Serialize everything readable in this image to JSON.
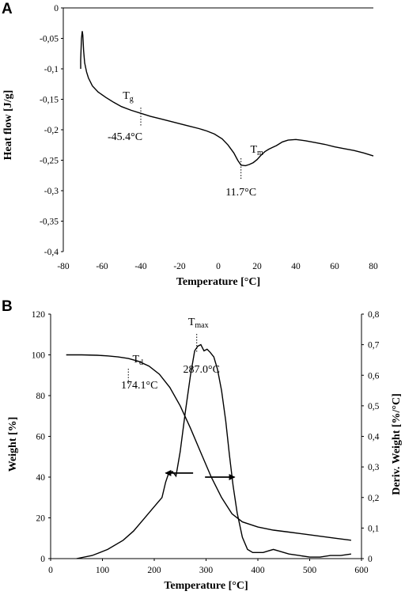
{
  "chart_data": [
    {
      "panel": "A",
      "type": "line",
      "xlabel": "Temperature [°C]",
      "ylabel": "Heat flow [J/g]",
      "xlim": [
        -80,
        80
      ],
      "ylim": [
        -0.4,
        0
      ],
      "x_ticks": [
        "-80",
        "-60",
        "-40",
        "-20",
        "0",
        "20",
        "40",
        "60",
        "80"
      ],
      "y_ticks": [
        "0",
        "-0,05",
        "-0,1",
        "-0,15",
        "-0,2",
        "-0,25",
        "-0,3",
        "-0,35",
        "-0,4"
      ],
      "series": [
        {
          "x": [
            -71,
            -71,
            -70.6,
            -70.2,
            -69.9,
            -69.5,
            -69,
            -68,
            -67,
            -65,
            -62,
            -58,
            -54,
            -50,
            -45,
            -40,
            -35,
            -30,
            -25,
            -20,
            -15,
            -10,
            -6,
            -2,
            2,
            5,
            8,
            10,
            11.7,
            14,
            16,
            18,
            20,
            22,
            24,
            26,
            28,
            30,
            33,
            36,
            40,
            45,
            50,
            55,
            60,
            65,
            70,
            75,
            80
          ],
          "y": [
            -0.1,
            -0.085,
            -0.05,
            -0.038,
            -0.045,
            -0.07,
            -0.09,
            -0.105,
            -0.115,
            -0.128,
            -0.138,
            -0.147,
            -0.155,
            -0.162,
            -0.168,
            -0.173,
            -0.178,
            -0.182,
            -0.186,
            -0.19,
            -0.194,
            -0.198,
            -0.202,
            -0.207,
            -0.215,
            -0.225,
            -0.238,
            -0.25,
            -0.258,
            -0.259,
            -0.257,
            -0.254,
            -0.249,
            -0.242,
            -0.236,
            -0.232,
            -0.229,
            -0.226,
            -0.22,
            -0.217,
            -0.216,
            -0.218,
            -0.221,
            -0.224,
            -0.228,
            -0.231,
            -0.234,
            -0.238,
            -0.243
          ]
        }
      ],
      "annotations": [
        {
          "symbol": "T",
          "sub": "g",
          "value_label": "-45.4°C",
          "x": -40
        },
        {
          "symbol": "T",
          "sub": "m",
          "value_label": "11.7°C",
          "x": 11.7
        }
      ]
    },
    {
      "panel": "B",
      "type": "line",
      "xlabel": "Temperature [°C]",
      "ylabel": "Weight [%]",
      "y2label": "Deriv. Weight [%/°C]",
      "xlim": [
        0,
        600
      ],
      "ylim": [
        0,
        120
      ],
      "y2lim": [
        0,
        0.8
      ],
      "x_ticks": [
        "0",
        "100",
        "200",
        "300",
        "400",
        "500",
        "600"
      ],
      "y_ticks": [
        "0",
        "20",
        "40",
        "60",
        "80",
        "100",
        "120"
      ],
      "y2_ticks": [
        "0",
        "0,1",
        "0,2",
        "0,3",
        "0,4",
        "0,5",
        "0,6",
        "0,7",
        "0,8"
      ],
      "series": [
        {
          "axis": "left",
          "x": [
            30,
            60,
            90,
            110,
            130,
            150,
            170,
            190,
            210,
            230,
            250,
            270,
            290,
            310,
            330,
            350,
            370,
            400,
            430,
            460,
            490,
            520,
            550,
            580
          ],
          "y": [
            100,
            100,
            99.8,
            99.5,
            99,
            98.2,
            96.8,
            94.5,
            90.5,
            84,
            75,
            64,
            52,
            40,
            30,
            22,
            18,
            15.5,
            14,
            13,
            12,
            11,
            10,
            9
          ]
        },
        {
          "axis": "right",
          "x": [
            50,
            80,
            110,
            140,
            160,
            180,
            200,
            215,
            222,
            228,
            235,
            242,
            250,
            260,
            270,
            278,
            284,
            290,
            296,
            302,
            308,
            315,
            322,
            330,
            338,
            345,
            352,
            360,
            370,
            380,
            390,
            400,
            410,
            420,
            430,
            440,
            460,
            480,
            500,
            520,
            540,
            560,
            580
          ],
          "y": [
            0,
            0.01,
            0.03,
            0.06,
            0.09,
            0.13,
            0.17,
            0.2,
            0.25,
            0.28,
            0.285,
            0.27,
            0.35,
            0.48,
            0.6,
            0.68,
            0.695,
            0.7,
            0.68,
            0.685,
            0.675,
            0.66,
            0.62,
            0.55,
            0.45,
            0.34,
            0.24,
            0.15,
            0.07,
            0.03,
            0.02,
            0.02,
            0.02,
            0.025,
            0.03,
            0.025,
            0.015,
            0.01,
            0.005,
            0.005,
            0.01,
            0.01,
            0.015
          ]
        }
      ],
      "annotations": [
        {
          "symbol": "T",
          "sub": "d",
          "value_label": "174.1°C",
          "x": 150
        },
        {
          "symbol": "T",
          "sub": "max",
          "value_label": "287.0°C",
          "x": 282
        }
      ],
      "arrows": [
        {
          "points_to": "right",
          "x_from": 298,
          "x_to": 355,
          "y_data": 40
        },
        {
          "points_to": "left",
          "x_from": 275,
          "x_to": 222,
          "y_data": 0.28
        }
      ]
    }
  ],
  "panels": [
    {
      "label": "A"
    },
    {
      "label": "B"
    }
  ]
}
